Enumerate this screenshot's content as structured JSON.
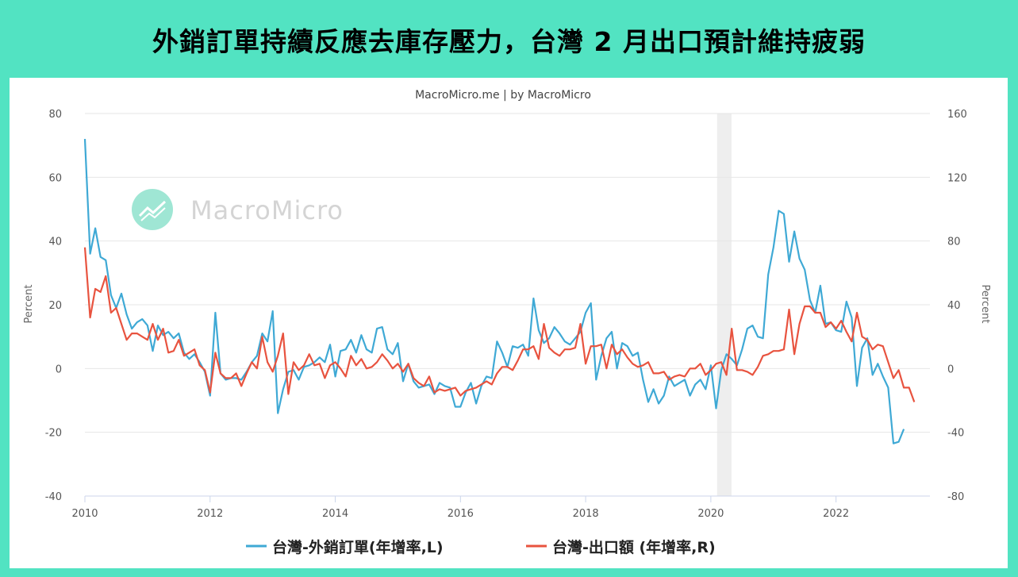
{
  "title": "外銷訂單持續反應去庫存壓力，台灣 2 月出口預計維持疲弱",
  "source": "MacroMicro.me | by MacroMicro",
  "watermark": "MacroMicro",
  "colors": {
    "background": "#52e3c2",
    "orders": "#3fa9d5",
    "exports": "#e8533f",
    "recession": "#eeeeee"
  },
  "chart_data": {
    "type": "line",
    "x_axis": {
      "ticks": [
        "2010",
        "2012",
        "2014",
        "2016",
        "2018",
        "2020",
        "2022"
      ],
      "range": [
        2010,
        2023.5
      ]
    },
    "y_left": {
      "label": "Percent",
      "range": [
        -40,
        80
      ],
      "ticks": [
        "80",
        "60",
        "40",
        "20",
        "0",
        "-20",
        "-40"
      ]
    },
    "y_right": {
      "label": "Percent",
      "range": [
        -80,
        160
      ],
      "ticks": [
        "160",
        "120",
        "80",
        "40",
        "0",
        "-40",
        "-80"
      ]
    },
    "shaded_band": [
      2020.1,
      2020.33
    ],
    "grid": true,
    "legend_position": "bottom",
    "series": [
      {
        "name": "台灣-外銷訂單(年增率,L)",
        "axis": "left",
        "color": "#3fa9d5",
        "start": "2010-01",
        "values": [
          72,
          36,
          44,
          35,
          34,
          23,
          19,
          23.5,
          17,
          12.5,
          14.5,
          15.5,
          13.5,
          5.5,
          13.5,
          10.5,
          11.5,
          9.5,
          11,
          5,
          3,
          4.5,
          2,
          -1,
          -8.5,
          17.5,
          -1.5,
          -3.5,
          -3,
          -3,
          -3.5,
          -1,
          2,
          4,
          11,
          8.5,
          18,
          -14,
          -6.5,
          -1,
          -0.5,
          -3.5,
          0.5,
          1,
          2,
          3.5,
          2,
          7.5,
          -2.5,
          5.5,
          6,
          9,
          5,
          10.5,
          6,
          5,
          12.5,
          13,
          6,
          4.5,
          8,
          -4,
          1.5,
          -4,
          -6,
          -5.5,
          -5,
          -8,
          -4.5,
          -5.5,
          -6,
          -12,
          -12,
          -7.5,
          -4.5,
          -11,
          -5.5,
          -2.5,
          -3,
          8.5,
          5,
          0.5,
          7,
          6.5,
          7.5,
          4,
          22,
          12,
          8,
          9.5,
          13,
          11,
          8.5,
          7.5,
          9.5,
          11.5,
          17.5,
          20.5,
          -3.5,
          4,
          9.5,
          11.5,
          0,
          8,
          7,
          4,
          5,
          -3.5,
          -10.5,
          -6.5,
          -11,
          -8.5,
          -2.5,
          -5.5,
          -4.5,
          -3.5,
          -8.5,
          -5,
          -3.5,
          -6.5,
          1,
          -12.5,
          -0.5,
          4.5,
          3,
          1,
          6,
          12.5,
          13.5,
          10,
          9.5,
          29.5,
          38,
          49.5,
          48.5,
          33.5,
          43,
          34.5,
          31,
          21.5,
          17.5,
          26,
          14,
          14.5,
          12,
          11.5,
          21,
          16,
          -5.5,
          6.5,
          9.5,
          -2,
          1.5,
          -2.5,
          -6,
          -23.5,
          -23,
          -19
        ]
      },
      {
        "name": "台灣-出口額 (年增率,R)",
        "axis": "right",
        "color": "#e8533f",
        "start": "2010-01",
        "values": [
          76,
          32,
          50,
          48,
          58,
          35,
          38,
          28,
          18,
          22,
          22,
          20,
          18,
          28,
          18,
          25,
          10,
          11,
          18,
          8,
          10,
          12,
          2,
          -1,
          -15,
          10,
          -3,
          -6,
          -6,
          -3,
          -11,
          -3,
          4,
          0,
          20,
          4,
          -2,
          8,
          22,
          -16,
          4,
          -1,
          2,
          9,
          2,
          3,
          -6,
          2,
          4,
          0,
          -5,
          8,
          2,
          6,
          0,
          1,
          4,
          9,
          5,
          0,
          3,
          -2,
          3,
          -6,
          -9,
          -11,
          -5,
          -15,
          -13,
          -14,
          -13,
          -12,
          -17,
          -14,
          -13,
          -12,
          -10,
          -8,
          -10,
          -3,
          1,
          1,
          -1,
          5,
          12,
          12,
          14,
          6,
          28,
          13,
          10,
          8,
          12,
          12,
          13,
          28,
          3,
          14,
          14,
          15,
          0,
          15,
          9,
          12,
          7,
          3,
          1,
          2,
          4,
          -3,
          -3,
          -2,
          -7,
          -5,
          -4,
          -5,
          0,
          0,
          3,
          -4,
          -1,
          3,
          4,
          -4,
          25,
          -1,
          -1,
          -2,
          -4,
          1,
          8,
          9,
          11,
          11,
          12,
          37,
          9,
          28,
          39,
          39,
          35,
          35,
          26,
          29,
          25,
          30,
          23,
          17,
          35,
          20,
          18,
          12,
          15,
          14,
          4,
          -6,
          -1,
          -12,
          -12,
          -21
        ]
      }
    ]
  }
}
